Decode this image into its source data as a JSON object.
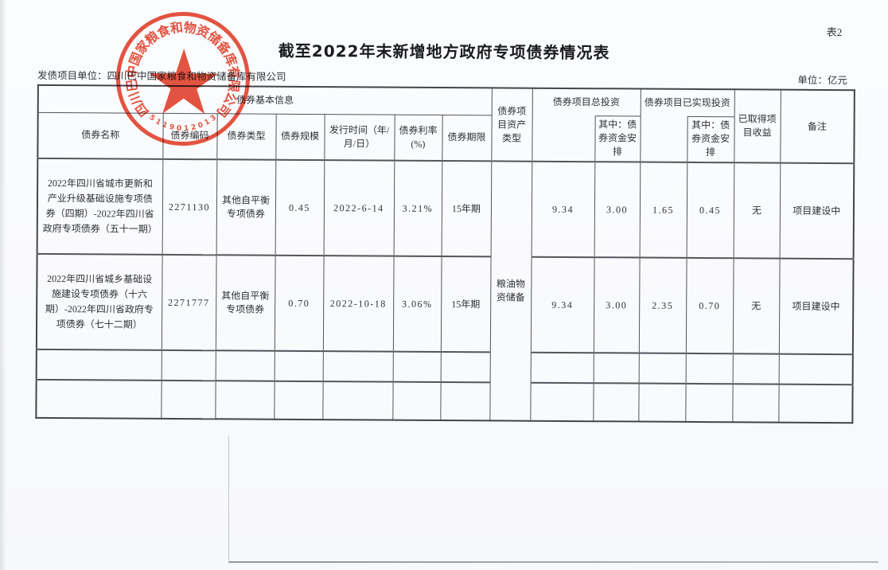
{
  "page": {
    "table_tag": "表2",
    "title": "截至2022年末新增地方政府专项债券情况表",
    "issuer_label": "发债项目单位：四川巴中国家粮食和物资储备库有限公司",
    "unit_label": "单位：亿元"
  },
  "stamp": {
    "arc_text": "四川巴中国家粮食和物资储备库有限公司",
    "serial": "5119012013",
    "color": "#df3b26"
  },
  "table": {
    "group_headers": {
      "basic_info": "债券基本信息",
      "asset_type": "债券项目资产类型",
      "total_investment": "债券项目总投资",
      "realized_investment": "债券项目已实现投资",
      "income": "已取得项目收益",
      "remark": "备注"
    },
    "sub_headers": {
      "name": "债券名称",
      "code": "债券编码",
      "type": "债券类型",
      "scale": "债券规模",
      "issue_date": "发行时间（年/月/日）",
      "rate": "债券利率(%)",
      "term": "债券期限",
      "fund_arrangement": "其中：债券资金安排"
    },
    "asset_type_value": "粮油物资储备",
    "rows": [
      {
        "name": "2022年四川省城市更新和产业升级基础设施专项债券（四期）-2022年四川省政府专项债券（五十一期）",
        "code": "2271130",
        "type": "其他自平衡专项债券",
        "scale": "0.45",
        "issue_date": "2022-6-14",
        "rate": "3.21%",
        "term": "15年期",
        "total_investment": "9.34",
        "total_investment_bond": "3.00",
        "realized_investment": "1.65",
        "realized_investment_bond": "0.45",
        "income": "无",
        "remark": "项目建设中"
      },
      {
        "name": "2022年四川省城乡基础设施建设专项债券（十六期）-2022年四川省政府专项债券（七十二期）",
        "code": "2271777",
        "type": "其他自平衡专项债券",
        "scale": "0.70",
        "issue_date": "2022-10-18",
        "rate": "3.06%",
        "term": "15年期",
        "total_investment": "9.34",
        "total_investment_bond": "3.00",
        "realized_investment": "2.35",
        "realized_investment_bond": "0.70",
        "income": "无",
        "remark": "项目建设中"
      }
    ]
  }
}
